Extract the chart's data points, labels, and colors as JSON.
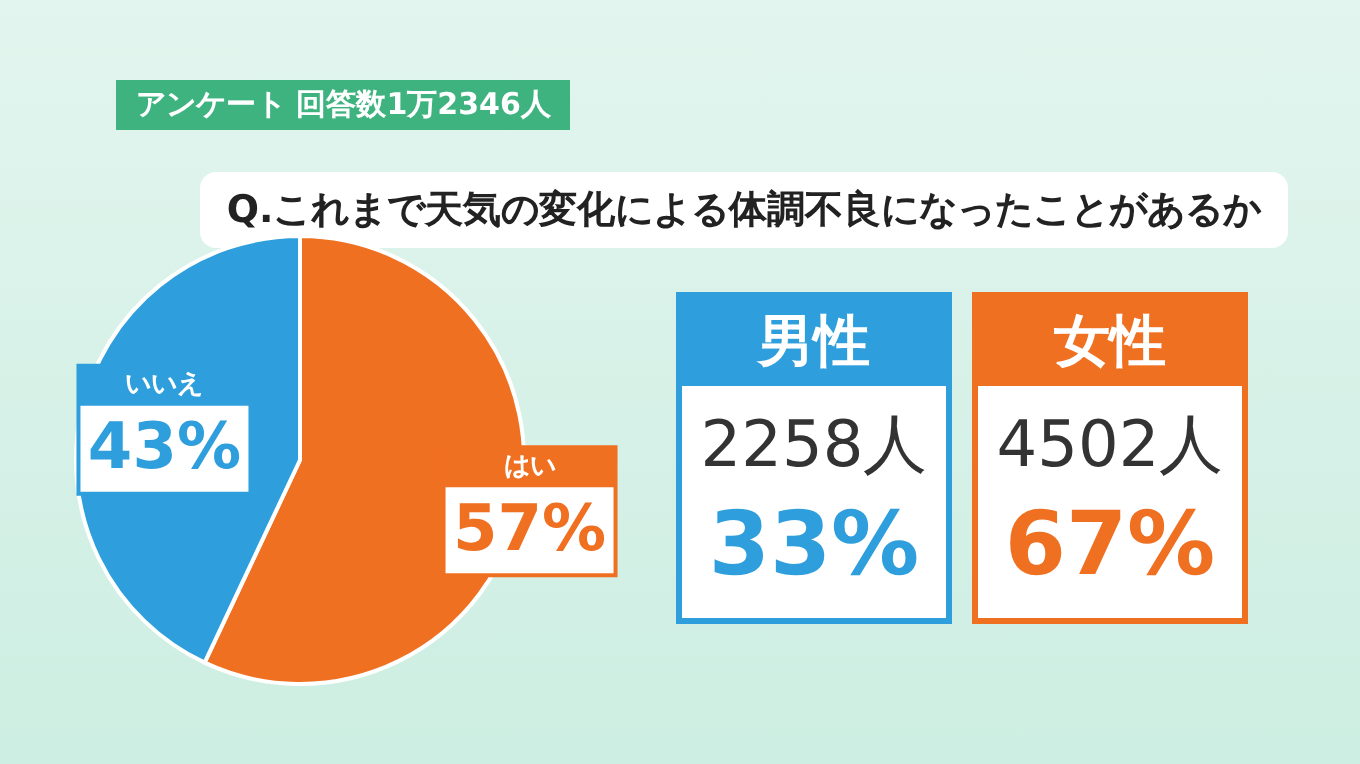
{
  "chart_data": [
    {
      "type": "pie",
      "subtitle": "アンケート 回答数1万2346人",
      "title": "Q.これまで天気の変化による体調不良になったことがあるか",
      "categories": [
        "はい",
        "いいえ"
      ],
      "values": [
        57,
        43
      ],
      "colors": [
        "#f07022",
        "#2e9fdc"
      ],
      "value_labels": [
        "57%",
        "43%"
      ],
      "legend": false
    },
    {
      "type": "other",
      "categories": [
        "男性",
        "女性"
      ],
      "annotations": [
        "2258人",
        "33%",
        "4502人",
        "67%"
      ],
      "colors": [
        "#2e9fdc",
        "#f07022"
      ]
    }
  ]
}
